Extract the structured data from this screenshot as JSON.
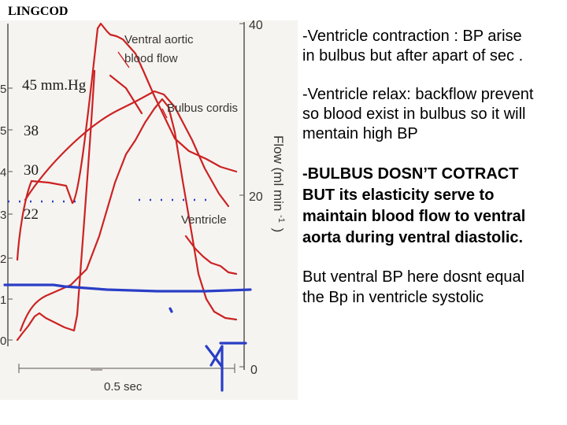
{
  "slide": {
    "title": "LINGCOD"
  },
  "figure": {
    "right_axis_title": "Flow (ml min",
    "right_axis_superscript": "-1",
    "right_axis_close": ")",
    "right_ticks": [
      "40",
      "20",
      "0"
    ],
    "left_ticks": [
      "5",
      "5",
      "4",
      "3",
      "2",
      "1",
      "0"
    ],
    "curve_labels": {
      "aortic_line1": "Ventral aortic",
      "aortic_line2": "blood flow",
      "bulbus": "Bulbus cordis",
      "ventricle": "Ventricle"
    },
    "time_label": "0.5 sec",
    "pressure_annotations": [
      "45 mm.Hg",
      "38",
      "30",
      "22"
    ]
  },
  "bullets": [
    {
      "lines": [
        "-Ventricle contraction : BP arise",
        "in bulbus but after apart of sec ."
      ]
    },
    {
      "lines": [
        "-Ventricle relax: backflow prevent",
        "so blood exist in bulbus  so it will",
        "mentain high BP"
      ]
    },
    {
      "lines": [
        "-BULBUS DOSN’T COTRACT",
        "BUT  its elasticity serve to",
        "maintain blood flow to ventral",
        "aorta during ventral diastolic."
      ]
    },
    {
      "lines": [
        "But ventral BP here dosnt equal",
        "the Bp in ventricle systolic"
      ]
    }
  ],
  "colors": {
    "curve_red": "#cc2222",
    "annotation_blue": "#2a3ec6",
    "axis": "#5a5550"
  }
}
